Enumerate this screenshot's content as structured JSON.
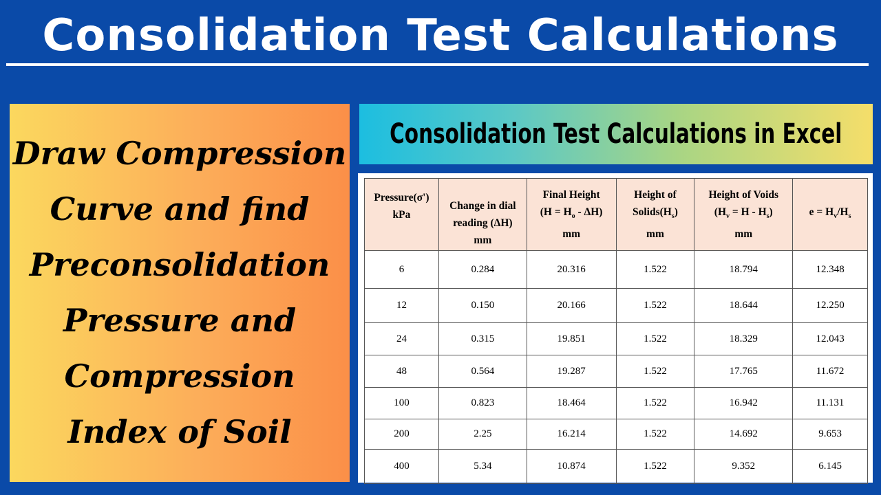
{
  "main_title": "Consolidation Test Calculations",
  "left_panel": {
    "lines": [
      "Draw Compression",
      "Curve and find",
      "Preconsolidation",
      "Pressure and",
      "Compression",
      "Index of Soil"
    ]
  },
  "banner": {
    "text": "Consolidation Test Calculations in Excel"
  },
  "table": {
    "headers": {
      "pressure": {
        "line1": "Pressure(σ')",
        "line2": "kPa"
      },
      "dial": {
        "line1": "Change in dial",
        "line2": "reading (ΔH)",
        "line3": "mm"
      },
      "final_height": {
        "line1": "Final Height",
        "line2_a": "(H = H",
        "line2_sub": "o",
        "line2_b": " - ΔH)",
        "line3": "mm"
      },
      "solids": {
        "line1": "Height of",
        "line2_a": "Solids(H",
        "line2_sub": "s",
        "line2_b": ")",
        "line3": "mm"
      },
      "voids": {
        "line1": "Height of Voids",
        "line2_a": "(H",
        "line2_sub1": "v",
        "line2_b": " = H - H",
        "line2_sub2": "s",
        "line2_c": ")",
        "line3": "mm"
      },
      "void_ratio": {
        "a": "e = H",
        "sub1": "v",
        "b": "/H",
        "sub2": "s"
      }
    },
    "rows": [
      [
        "6",
        "0.284",
        "20.316",
        "1.522",
        "18.794",
        "12.348"
      ],
      [
        "12",
        "0.150",
        "20.166",
        "1.522",
        "18.644",
        "12.250"
      ],
      [
        "24",
        "0.315",
        "19.851",
        "1.522",
        "18.329",
        "12.043"
      ],
      [
        "48",
        "0.564",
        "19.287",
        "1.522",
        "17.765",
        "11.672"
      ],
      [
        "100",
        "0.823",
        "18.464",
        "1.522",
        "16.942",
        "11.131"
      ],
      [
        "200",
        "2.25",
        "16.214",
        "1.522",
        "14.692",
        "9.653"
      ],
      [
        "400",
        "5.34",
        "10.874",
        "1.522",
        "9.352",
        "6.145"
      ]
    ]
  }
}
